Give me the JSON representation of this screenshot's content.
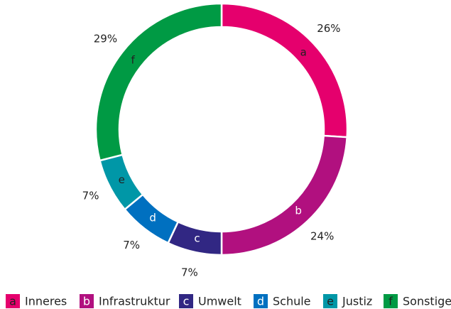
{
  "chart_data": {
    "type": "pie",
    "categories": [
      "Inneres",
      "Infrastruktur",
      "Umwelt",
      "Schule",
      "Justiz",
      "Sonstige"
    ],
    "letters": [
      "a",
      "b",
      "c",
      "d",
      "e",
      "f"
    ],
    "values": [
      26,
      24,
      7,
      7,
      7,
      29
    ],
    "value_labels": [
      "26%",
      "24%",
      "7%",
      "7%",
      "7%",
      "29%"
    ],
    "colors": [
      "#e5006d",
      "#b1107f",
      "#312783",
      "#0070c0",
      "#0097a7",
      "#009a44"
    ],
    "legend": "bottom"
  }
}
